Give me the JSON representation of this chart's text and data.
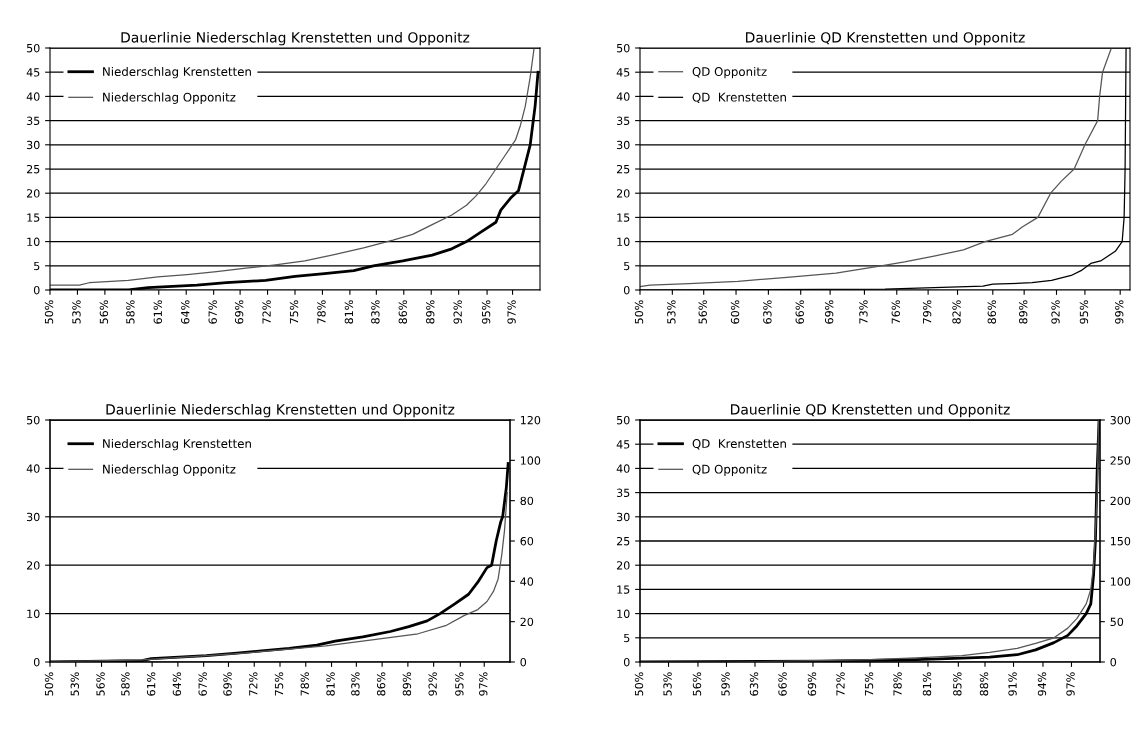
{
  "chart_data": [
    {
      "type": "line",
      "title": "Dauerlinie Niederschlag Krenstetten und Opponitz",
      "xlim": [
        50,
        100
      ],
      "ylim": [
        0,
        50
      ],
      "yticks": [
        0,
        5,
        10,
        15,
        20,
        25,
        30,
        35,
        40,
        45,
        50
      ],
      "xticks": [
        {
          "value": 50,
          "label": "50%"
        },
        {
          "value": 52.8,
          "label": "53%"
        },
        {
          "value": 55.6,
          "label": "56%"
        },
        {
          "value": 58.3,
          "label": "58%"
        },
        {
          "value": 61.1,
          "label": "61%"
        },
        {
          "value": 63.9,
          "label": "64%"
        },
        {
          "value": 66.7,
          "label": "67%"
        },
        {
          "value": 69.4,
          "label": "69%"
        },
        {
          "value": 72.2,
          "label": "72%"
        },
        {
          "value": 75,
          "label": "75%"
        },
        {
          "value": 77.8,
          "label": "78%"
        },
        {
          "value": 80.6,
          "label": "81%"
        },
        {
          "value": 83.3,
          "label": "83%"
        },
        {
          "value": 86.1,
          "label": "86%"
        },
        {
          "value": 88.9,
          "label": "89%"
        },
        {
          "value": 91.7,
          "label": "92%"
        },
        {
          "value": 94.6,
          "label": "95%"
        },
        {
          "value": 97.2,
          "label": "97%"
        }
      ],
      "grid": "y",
      "legend": "top left",
      "series": [
        {
          "name": "Niederschlag Krenstetten",
          "color": "#000000",
          "x": [
            50,
            58,
            60,
            65,
            68,
            72,
            75,
            78,
            81,
            83,
            86,
            89,
            91,
            92.5,
            94,
            95.5,
            96,
            97,
            97.8,
            98.5,
            99,
            99.5,
            99.8
          ],
          "values": [
            0,
            0,
            0.5,
            1,
            1.5,
            2,
            2.8,
            3.4,
            4,
            5,
            6,
            7.2,
            8.5,
            10,
            12,
            14,
            16.5,
            19,
            20.5,
            26,
            30,
            38,
            45
          ]
        },
        {
          "name": "Niederschlag Opponitz",
          "color": "#555555",
          "x": [
            50,
            53,
            54,
            58,
            61,
            64,
            67,
            70,
            73,
            76,
            79,
            82,
            85,
            87,
            89,
            91,
            92.5,
            93.5,
            94.5,
            95.5,
            96.5,
            97.5,
            98,
            98.5,
            99,
            99.4
          ],
          "values": [
            1,
            1,
            1.5,
            2,
            2.7,
            3.2,
            3.8,
            4.5,
            5.2,
            6,
            7.3,
            8.7,
            10.3,
            11.5,
            13.5,
            15.5,
            17.5,
            19.5,
            22,
            25,
            28,
            31,
            34,
            38,
            44,
            50
          ]
        }
      ]
    },
    {
      "type": "line",
      "title": "Dauerlinie QD Krenstetten und Opponitz",
      "xlim": [
        50,
        100
      ],
      "ylim": [
        0,
        50
      ],
      "yticks": [
        0,
        5,
        10,
        15,
        20,
        25,
        30,
        35,
        40,
        45,
        50
      ],
      "xticks": [
        {
          "value": 50,
          "label": "50%"
        },
        {
          "value": 53.3,
          "label": "53%"
        },
        {
          "value": 56.5,
          "label": "56%"
        },
        {
          "value": 59.8,
          "label": "60%"
        },
        {
          "value": 63.1,
          "label": "63%"
        },
        {
          "value": 66.4,
          "label": "66%"
        },
        {
          "value": 69.4,
          "label": "69%"
        },
        {
          "value": 72.9,
          "label": "73%"
        },
        {
          "value": 76.2,
          "label": "76%"
        },
        {
          "value": 79.4,
          "label": "79%"
        },
        {
          "value": 82.4,
          "label": "82%"
        },
        {
          "value": 86,
          "label": "86%"
        },
        {
          "value": 89.2,
          "label": "89%"
        },
        {
          "value": 92.5,
          "label": "92%"
        },
        {
          "value": 95.4,
          "label": "95%"
        },
        {
          "value": 99,
          "label": "99%"
        }
      ],
      "grid": "y",
      "legend": "top left",
      "series": [
        {
          "name": "QD Opponitz",
          "color": "#555555",
          "x": [
            50,
            51,
            55,
            60,
            65,
            70,
            74.6,
            77,
            80,
            83,
            85.2,
            88,
            89,
            90.6,
            91.9,
            93,
            94.3,
            95.4,
            96.7,
            96.9,
            97.2,
            98.1
          ],
          "values": [
            0.7,
            1,
            1.3,
            1.8,
            2.6,
            3.5,
            5,
            5.8,
            7,
            8.3,
            10,
            11.5,
            13,
            15,
            20,
            22.5,
            25,
            30,
            35,
            40,
            45,
            50
          ]
        },
        {
          "name": "QD  Krenstetten",
          "color": "#000000",
          "x": [
            50,
            75,
            85,
            86,
            90,
            92,
            94,
            95,
            96,
            97,
            98.5,
            99.2,
            99.4,
            99.5,
            99.6
          ],
          "values": [
            0,
            0.2,
            0.8,
            1.2,
            1.5,
            2,
            3,
            4,
            5.5,
            6,
            8,
            10,
            15,
            25,
            50
          ]
        }
      ]
    },
    {
      "type": "line",
      "title": "Dauerlinie Niederschlag Krenstetten und Opponitz",
      "xlim": [
        50,
        100
      ],
      "ylim": [
        0,
        50
      ],
      "yticks": [
        0,
        10,
        20,
        30,
        40,
        50
      ],
      "y2lim": [
        0,
        120
      ],
      "y2ticks": [
        0,
        20,
        40,
        60,
        80,
        100,
        120
      ],
      "xticks": [
        {
          "value": 50,
          "label": "50%"
        },
        {
          "value": 52.8,
          "label": "53%"
        },
        {
          "value": 55.6,
          "label": "56%"
        },
        {
          "value": 58.3,
          "label": "58%"
        },
        {
          "value": 61.1,
          "label": "61%"
        },
        {
          "value": 63.9,
          "label": "64%"
        },
        {
          "value": 66.7,
          "label": "67%"
        },
        {
          "value": 69.4,
          "label": "69%"
        },
        {
          "value": 72.2,
          "label": "72%"
        },
        {
          "value": 75,
          "label": "75%"
        },
        {
          "value": 77.8,
          "label": "78%"
        },
        {
          "value": 80.6,
          "label": "81%"
        },
        {
          "value": 83.3,
          "label": "83%"
        },
        {
          "value": 86.1,
          "label": "86%"
        },
        {
          "value": 88.9,
          "label": "89%"
        },
        {
          "value": 91.7,
          "label": "92%"
        },
        {
          "value": 94.6,
          "label": "95%"
        },
        {
          "value": 97.2,
          "label": "97%"
        }
      ],
      "grid": "y",
      "legend": "top left",
      "series": [
        {
          "name": "Niederschlag Krenstetten",
          "color": "#000000",
          "x": [
            50,
            60,
            61,
            64,
            67,
            70,
            73,
            76,
            79,
            81,
            84,
            87,
            89,
            91,
            92.4,
            94,
            95.5,
            96.5,
            97.5,
            98,
            98.5,
            99,
            99.2,
            99.6,
            99.8
          ],
          "values": [
            0,
            0.3,
            0.7,
            1,
            1.3,
            1.8,
            2.3,
            2.8,
            3.5,
            4.3,
            5.2,
            6.3,
            7.3,
            8.5,
            10,
            12,
            14,
            16.5,
            19.5,
            20,
            25,
            29,
            30,
            36,
            41
          ]
        },
        {
          "name": "Niederschlag Opponitz",
          "color": "#555555",
          "axis": "y2",
          "x": [
            50,
            60,
            70,
            80,
            85,
            90,
            93,
            95,
            96.5,
            97.5,
            98.2,
            98.7,
            99.1,
            99.4,
            99.7
          ],
          "values": [
            0,
            1,
            4,
            8,
            11,
            14,
            18,
            23,
            26,
            30,
            35,
            41,
            53,
            65,
            84
          ]
        }
      ]
    },
    {
      "type": "line",
      "title": "Dauerlinie QD Krenstetten und Opponitz",
      "xlim": [
        50,
        100
      ],
      "ylim": [
        0,
        50
      ],
      "yticks": [
        0,
        5,
        10,
        15,
        20,
        25,
        30,
        35,
        40,
        45,
        50
      ],
      "y2lim": [
        0,
        300
      ],
      "y2ticks": [
        0,
        50,
        100,
        150,
        200,
        250,
        300
      ],
      "xticks": [
        {
          "value": 50,
          "label": "50%"
        },
        {
          "value": 53.1,
          "label": "53%"
        },
        {
          "value": 56.3,
          "label": "56%"
        },
        {
          "value": 59.4,
          "label": "59%"
        },
        {
          "value": 62.5,
          "label": "63%"
        },
        {
          "value": 65.6,
          "label": "66%"
        },
        {
          "value": 68.8,
          "label": "69%"
        },
        {
          "value": 71.9,
          "label": "72%"
        },
        {
          "value": 75,
          "label": "75%"
        },
        {
          "value": 78.1,
          "label": "78%"
        },
        {
          "value": 81.3,
          "label": "81%"
        },
        {
          "value": 84.6,
          "label": "85%"
        },
        {
          "value": 87.5,
          "label": "88%"
        },
        {
          "value": 90.6,
          "label": "91%"
        },
        {
          "value": 93.8,
          "label": "94%"
        },
        {
          "value": 96.9,
          "label": "97%"
        }
      ],
      "grid": "y",
      "legend": "top left",
      "series": [
        {
          "name": "QD  Krenstetten",
          "color": "#000000",
          "x": [
            50,
            70,
            80,
            85,
            88,
            91,
            93,
            95,
            96.5,
            97.5,
            98.5,
            99,
            99.3,
            99.5,
            99.7,
            99.9
          ],
          "values": [
            0,
            0.2,
            0.5,
            0.8,
            1,
            1.5,
            2.5,
            4,
            5.5,
            7.5,
            10,
            12,
            18,
            25,
            40,
            50
          ]
        },
        {
          "name": "QD Opponitz",
          "color": "#555555",
          "axis": "y2",
          "x": [
            50,
            60,
            66,
            75,
            80,
            85,
            88,
            91,
            93,
            95,
            96.5,
            97.5,
            98.5,
            99,
            99.3,
            99.5,
            99.7,
            99.85
          ],
          "values": [
            0,
            0,
            1,
            3,
            5,
            8,
            12,
            17,
            23,
            30,
            42,
            54,
            72,
            90,
            120,
            162,
            210,
            300
          ]
        }
      ]
    }
  ]
}
